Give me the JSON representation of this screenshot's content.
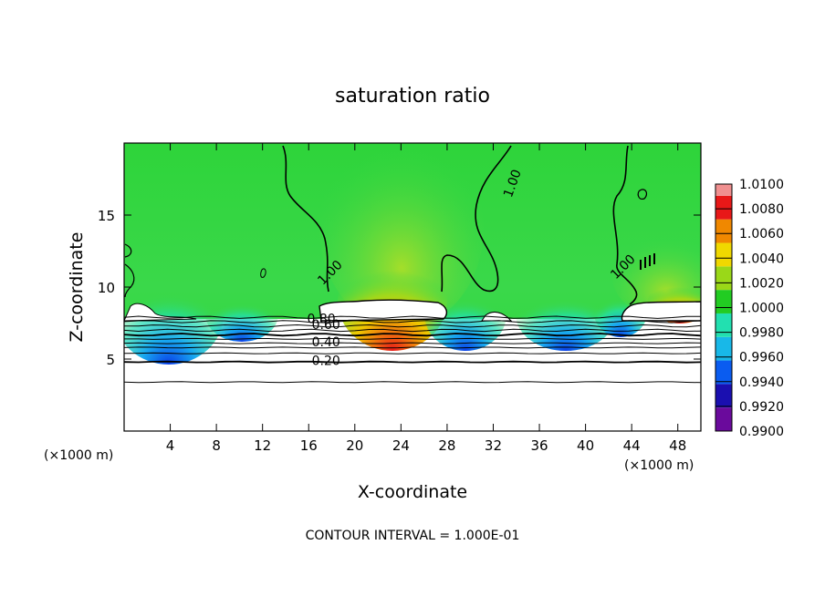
{
  "chart_data": {
    "type": "heatmap",
    "title": "saturation ratio",
    "xlabel": "X-coordinate",
    "ylabel": "Z-coordinate",
    "x_unit_label": "(×1000 m)",
    "x_unit_label_right": "(×1000 m)",
    "footer": "CONTOUR INTERVAL = 1.000E-01",
    "xlim": [
      0,
      50
    ],
    "ylim": [
      0,
      20
    ],
    "x_ticks": [
      4,
      8,
      12,
      16,
      20,
      24,
      28,
      32,
      36,
      40,
      44,
      48
    ],
    "x_tick_labels": [
      "4",
      "8",
      "12",
      "16",
      "20",
      "24",
      "28",
      "32",
      "36",
      "40",
      "44",
      "48"
    ],
    "y_ticks": [
      5,
      10,
      15
    ],
    "y_tick_labels": [
      "5",
      "10",
      "15"
    ],
    "colorbar": {
      "levels": [
        0.99,
        0.992,
        0.994,
        0.996,
        0.998,
        1.0,
        1.002,
        1.004,
        1.006,
        1.008,
        1.01
      ],
      "tick_labels": [
        "0.9900",
        "0.9920",
        "0.9940",
        "0.9960",
        "0.9980",
        "1.0000",
        "1.0020",
        "1.0040",
        "1.0060",
        "1.0080",
        "1.0100"
      ],
      "colors": [
        "#6a0a9c",
        "#1a0fb0",
        "#0a5cf0",
        "#18b8e8",
        "#22e0b0",
        "#22cc22",
        "#9ad818",
        "#f0d800",
        "#f08800",
        "#e81818",
        "#f09090"
      ]
    },
    "contour_labels": [
      {
        "text": "1.00",
        "x": 34.0,
        "y": 17.1
      },
      {
        "text": "1.00",
        "x": 18.1,
        "y": 10.8
      },
      {
        "text": "1.00",
        "x": 43.5,
        "y": 11.2
      },
      {
        "text": "0.60",
        "x": 17.5,
        "y": 7.1
      },
      {
        "text": "0.80",
        "x": 17.1,
        "y": 7.5
      },
      {
        "text": "0.40",
        "x": 17.5,
        "y": 5.9
      },
      {
        "text": "0.20",
        "x": 17.5,
        "y": 4.6
      }
    ],
    "contour_lines_y": [
      3.4,
      4.8,
      5.4,
      5.8,
      6.1,
      6.4,
      6.7,
      7.0,
      7.3,
      7.6,
      7.9
    ]
  }
}
